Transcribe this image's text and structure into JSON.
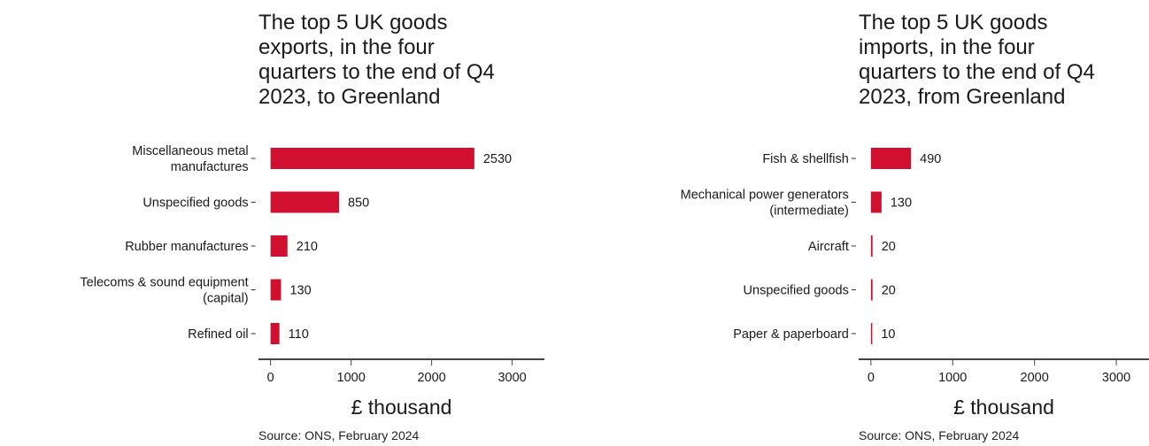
{
  "chart_data": [
    {
      "type": "bar",
      "orientation": "horizontal",
      "title": "The top 5 UK goods\nexports, in the four\nquarters to the end of Q4\n2023, to Greenland",
      "categories": [
        "Miscellaneous metal\nmanufactures",
        "Unspecified goods",
        "Rubber manufactures",
        "Telecoms & sound equipment\n(capital)",
        "Refined oil"
      ],
      "values": [
        2530,
        850,
        210,
        130,
        110
      ],
      "data_labels": [
        "2530",
        "850",
        "210",
        "130",
        "110"
      ],
      "xlabel": "£ thousand",
      "xticks": [
        "0",
        "1000",
        "2000",
        "3000"
      ],
      "xlim": [
        -150,
        3400
      ],
      "bar_color": "#d0102e",
      "source": "Source: ONS, February 2024",
      "grid": false
    },
    {
      "type": "bar",
      "orientation": "horizontal",
      "title": "The top 5 UK goods\nimports, in the four\nquarters to the end of Q4\n2023, from Greenland",
      "categories": [
        "Fish & shellfish",
        "Mechanical power generators\n(intermediate)",
        "Aircraft",
        "Unspecified goods",
        "Paper & paperboard"
      ],
      "values": [
        490,
        130,
        20,
        20,
        10
      ],
      "data_labels": [
        "490",
        "130",
        "20",
        "20",
        "10"
      ],
      "xlabel": "£ thousand",
      "xticks": [
        "0",
        "1000",
        "2000",
        "3000"
      ],
      "xlim": [
        -150,
        3400
      ],
      "bar_color": "#d0102e",
      "source": "Source: ONS, February 2024",
      "grid": false
    }
  ]
}
